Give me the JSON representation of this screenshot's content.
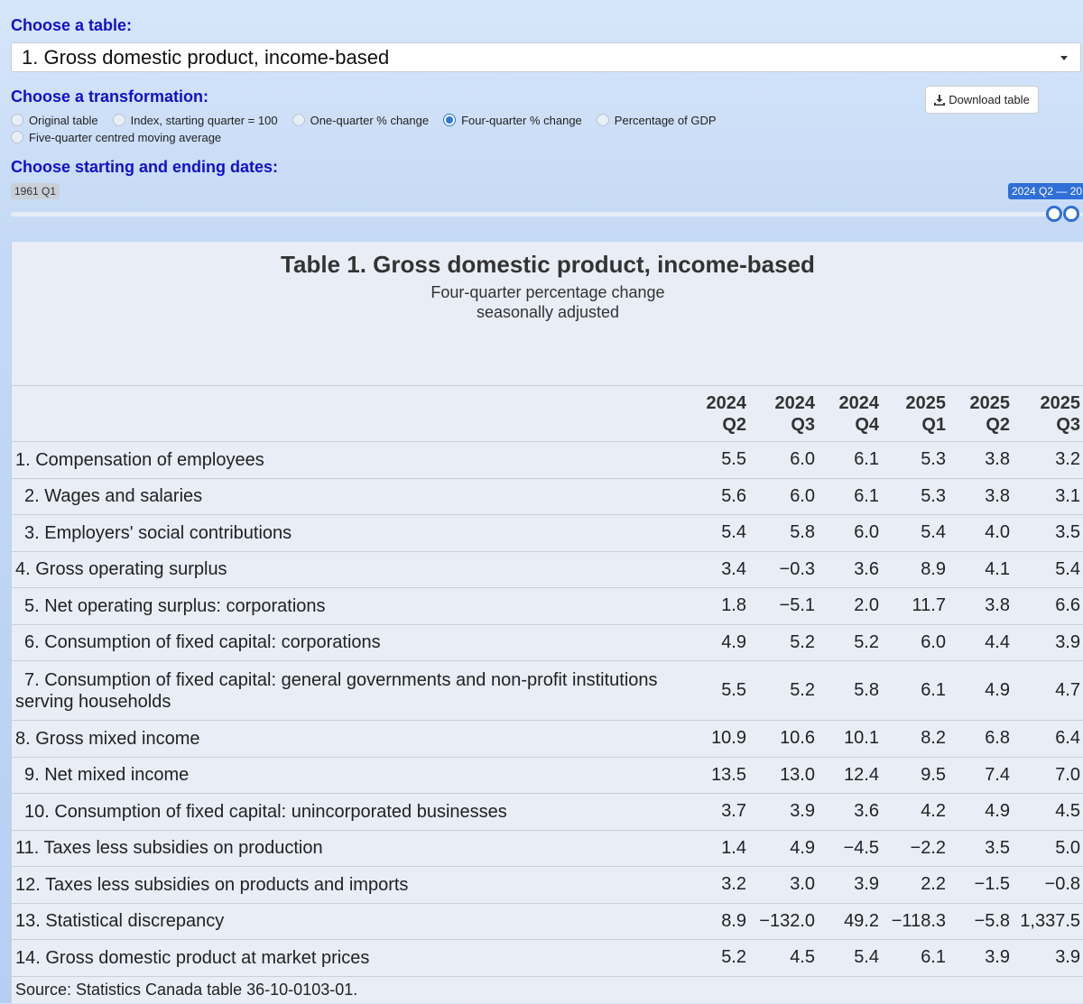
{
  "controls": {
    "table_label": "Choose a table:",
    "table_select": "1. Gross domestic product, income-based",
    "transformation_label": "Choose a transformation:",
    "transformation_options": [
      "Original table",
      "Index, starting quarter = 100",
      "One-quarter % change",
      "Four-quarter % change",
      "Percentage of GDP",
      "Five-quarter centred moving average"
    ],
    "transformation_selected_index": 3,
    "download_button": "Download table",
    "dates_label": "Choose starting and ending dates:",
    "slider_min": "1961 Q1",
    "slider_selected": "2024 Q2 — 20"
  },
  "table": {
    "title": "Table 1. Gross domestic product, income-based",
    "subtitle": [
      "Four-quarter percentage change",
      "seasonally adjusted"
    ],
    "columns": [
      [
        "2024",
        "Q2"
      ],
      [
        "2024",
        "Q3"
      ],
      [
        "2024",
        "Q4"
      ],
      [
        "2025",
        "Q1"
      ],
      [
        "2025",
        "Q2"
      ],
      [
        "2025",
        "Q3"
      ]
    ],
    "rows": [
      {
        "label": "1. Compensation of employees",
        "indent": false,
        "values": [
          "5.5",
          "6.0",
          "6.1",
          "5.3",
          "3.8",
          "3.2"
        ]
      },
      {
        "label": "2. Wages and salaries",
        "indent": true,
        "values": [
          "5.6",
          "6.0",
          "6.1",
          "5.3",
          "3.8",
          "3.1"
        ]
      },
      {
        "label": "3. Employers' social contributions",
        "indent": true,
        "values": [
          "5.4",
          "5.8",
          "6.0",
          "5.4",
          "4.0",
          "3.5"
        ]
      },
      {
        "label": "4. Gross operating surplus",
        "indent": false,
        "values": [
          "3.4",
          "−0.3",
          "3.6",
          "8.9",
          "4.1",
          "5.4"
        ]
      },
      {
        "label": "5. Net operating surplus: corporations",
        "indent": true,
        "values": [
          "1.8",
          "−5.1",
          "2.0",
          "11.7",
          "3.8",
          "6.6"
        ]
      },
      {
        "label": "6. Consumption of fixed capital: corporations",
        "indent": true,
        "values": [
          "4.9",
          "5.2",
          "5.2",
          "6.0",
          "4.4",
          "3.9"
        ]
      },
      {
        "label": "7. Consumption of fixed capital: general governments and non-profit institutions serving households",
        "indent": true,
        "values": [
          "5.5",
          "5.2",
          "5.8",
          "6.1",
          "4.9",
          "4.7"
        ]
      },
      {
        "label": "8. Gross mixed income",
        "indent": false,
        "values": [
          "10.9",
          "10.6",
          "10.1",
          "8.2",
          "6.8",
          "6.4"
        ]
      },
      {
        "label": "9. Net mixed income",
        "indent": true,
        "values": [
          "13.5",
          "13.0",
          "12.4",
          "9.5",
          "7.4",
          "7.0"
        ]
      },
      {
        "label": "10. Consumption of fixed capital: unincorporated businesses",
        "indent": true,
        "values": [
          "3.7",
          "3.9",
          "3.6",
          "4.2",
          "4.9",
          "4.5"
        ]
      },
      {
        "label": "11. Taxes less subsidies on production",
        "indent": false,
        "values": [
          "1.4",
          "4.9",
          "−4.5",
          "−2.2",
          "3.5",
          "5.0"
        ]
      },
      {
        "label": "12. Taxes less subsidies on products and imports",
        "indent": false,
        "values": [
          "3.2",
          "3.0",
          "3.9",
          "2.2",
          "−1.5",
          "−0.8"
        ]
      },
      {
        "label": "13. Statistical discrepancy",
        "indent": false,
        "values": [
          "8.9",
          "−132.0",
          "49.2",
          "−118.3",
          "−5.8",
          "1,337.5"
        ]
      },
      {
        "label": "14. Gross domestic product at market prices",
        "indent": false,
        "values": [
          "5.2",
          "4.5",
          "5.4",
          "6.1",
          "3.9",
          "3.9"
        ]
      }
    ],
    "source": "Source: Statistics Canada table 36-10-0103-01."
  }
}
